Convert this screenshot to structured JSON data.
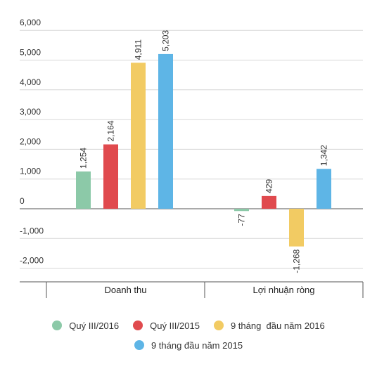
{
  "chart_data": {
    "type": "bar",
    "categories": [
      "Doanh thu",
      "Lợi nhuận ròng"
    ],
    "series": [
      {
        "name": "Quý III/2016",
        "color": "#8cc9a8",
        "values": [
          1254,
          -77
        ],
        "labels": [
          "1,254",
          "-77"
        ]
      },
      {
        "name": "Quý III/2015",
        "color": "#e04a4e",
        "values": [
          2164,
          429
        ],
        "labels": [
          "2,164",
          "429"
        ]
      },
      {
        "name": "9 tháng  đầu năm 2016",
        "color": "#f2cb63",
        "values": [
          4911,
          -1268
        ],
        "labels": [
          "4,911",
          "-1,268"
        ]
      },
      {
        "name": "9 tháng đầu năm 2015",
        "color": "#5eb5e6",
        "values": [
          5203,
          1342
        ],
        "labels": [
          "5,203",
          "1,342"
        ]
      }
    ],
    "yticks": [
      6000,
      5000,
      4000,
      3000,
      2000,
      1000,
      0,
      -1000,
      -2000
    ],
    "ytick_labels": [
      "6,000",
      "5,000",
      "4,000",
      "3,000",
      "2,000",
      "1,000",
      "0",
      "-1,000",
      "-2,000"
    ],
    "ylim": [
      -2500,
      6000
    ],
    "grid": true,
    "legend_position": "bottom",
    "title": "",
    "xlabel": "",
    "ylabel": ""
  }
}
